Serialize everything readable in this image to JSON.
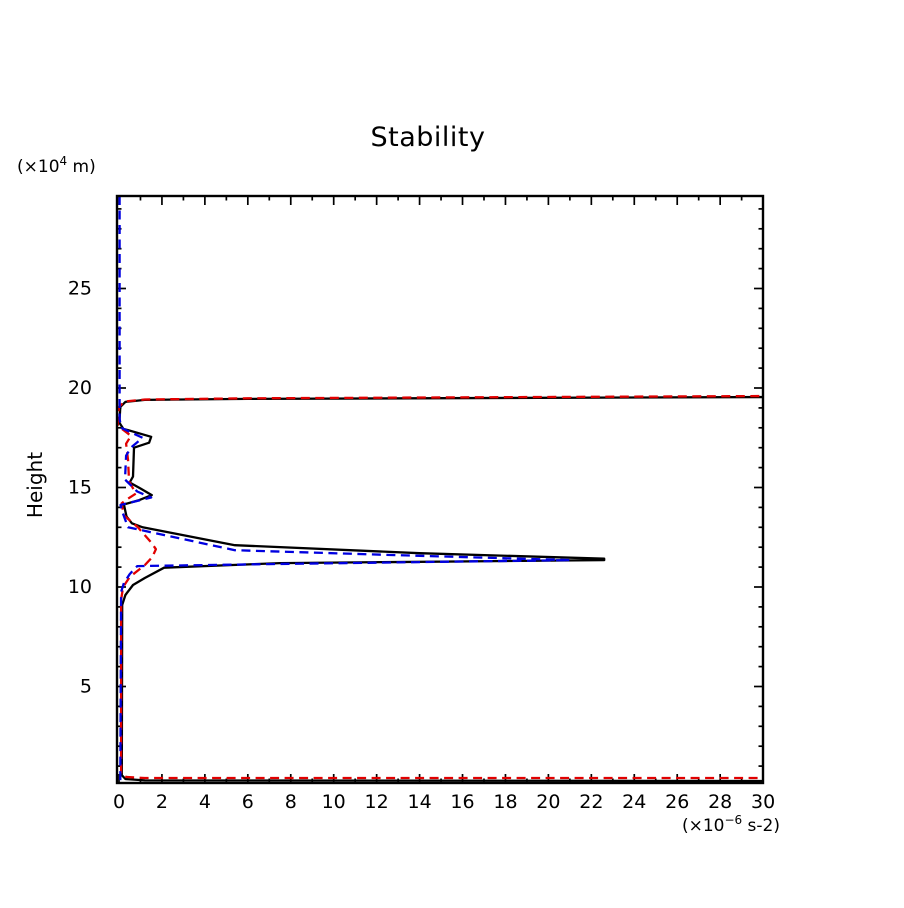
{
  "page": {
    "background_color": "#ffffff",
    "frame_color": "#000000"
  },
  "chart_data": {
    "type": "line",
    "title": "Stability",
    "ylabel": "Height",
    "y_axis_unit": {
      "prefix": "(×10",
      "sup": "4",
      "suffix": " m)"
    },
    "x_axis_unit": {
      "prefix": "(×10",
      "sup": "−6",
      "suffix": " s-2)"
    },
    "xlim": [
      0,
      30
    ],
    "ylim": [
      0,
      29.65
    ],
    "grid": false,
    "legend": null,
    "x_ticks": [
      {
        "v": 0,
        "label": "0"
      },
      {
        "v": 2,
        "label": "2"
      },
      {
        "v": 4,
        "label": "4"
      },
      {
        "v": 6,
        "label": "6"
      },
      {
        "v": 8,
        "label": "8"
      },
      {
        "v": 10,
        "label": "10"
      },
      {
        "v": 12,
        "label": "12"
      },
      {
        "v": 14,
        "label": "14"
      },
      {
        "v": 16,
        "label": "16"
      },
      {
        "v": 18,
        "label": "18"
      },
      {
        "v": 20,
        "label": "20"
      },
      {
        "v": 22,
        "label": "22"
      },
      {
        "v": 24,
        "label": "24"
      },
      {
        "v": 26,
        "label": "26"
      },
      {
        "v": 28,
        "label": "28"
      },
      {
        "v": 30,
        "label": "30"
      }
    ],
    "x_minor_step": 1,
    "y_ticks": [
      {
        "v": 5,
        "label": "5"
      },
      {
        "v": 10,
        "label": "10"
      },
      {
        "v": 15,
        "label": "15"
      },
      {
        "v": 20,
        "label": "20"
      },
      {
        "v": 25,
        "label": "25"
      }
    ],
    "y_minor_step": 1,
    "series": [
      {
        "name": "profile-solid-black",
        "style": "solid",
        "color": "#000000",
        "points": [
          [
            30.5,
            19.55
          ],
          [
            6,
            19.45
          ],
          [
            1.2,
            19.4
          ],
          [
            0.3,
            19.3
          ],
          [
            0.06,
            19.05
          ],
          [
            0.02,
            18.25
          ],
          [
            0.2,
            17.95
          ],
          [
            1.5,
            17.55
          ],
          [
            1.4,
            17.25
          ],
          [
            0.7,
            17.0
          ],
          [
            0.65,
            15.55
          ],
          [
            0.5,
            15.25
          ],
          [
            1.0,
            14.95
          ],
          [
            1.53,
            14.62
          ],
          [
            0.9,
            14.35
          ],
          [
            0.23,
            14.15
          ],
          [
            0.3,
            13.8
          ],
          [
            0.35,
            13.55
          ],
          [
            0.6,
            13.2
          ],
          [
            1.1,
            13.0
          ],
          [
            5.4,
            12.1
          ],
          [
            14,
            11.7
          ],
          [
            22.6,
            11.42
          ],
          [
            22.6,
            11.35
          ],
          [
            7.5,
            11.2
          ],
          [
            2.1,
            10.97
          ],
          [
            1.2,
            10.45
          ],
          [
            0.65,
            10.1
          ],
          [
            0.3,
            9.6
          ],
          [
            0.15,
            9.1
          ],
          [
            0.13,
            0.55
          ],
          [
            0.3,
            0.35
          ],
          [
            1.2,
            0.28
          ],
          [
            30.5,
            0.25
          ]
        ]
      },
      {
        "name": "profile-dashed-red",
        "style": "dashed",
        "color": "#e10000",
        "points": [
          [
            30.5,
            19.6
          ],
          [
            6,
            19.48
          ],
          [
            1.2,
            19.42
          ],
          [
            0.25,
            19.32
          ],
          [
            0.0,
            19.05
          ],
          [
            -0.05,
            18.6
          ],
          [
            -0.05,
            18.1
          ],
          [
            0.56,
            17.6
          ],
          [
            0.33,
            17.2
          ],
          [
            0.42,
            16.4
          ],
          [
            0.47,
            15.3
          ],
          [
            0.79,
            14.7
          ],
          [
            0.3,
            14.35
          ],
          [
            0.12,
            14.2
          ],
          [
            0.23,
            13.6
          ],
          [
            0.88,
            13.0
          ],
          [
            1.53,
            12.2
          ],
          [
            1.72,
            11.9
          ],
          [
            1.55,
            11.5
          ],
          [
            1.2,
            11.1
          ],
          [
            0.5,
            10.5
          ],
          [
            0.19,
            10.0
          ],
          [
            0.1,
            9.35
          ],
          [
            0.1,
            0.6
          ],
          [
            0.35,
            0.45
          ],
          [
            1.2,
            0.4
          ],
          [
            30.5,
            0.4
          ]
        ]
      },
      {
        "name": "profile-dashed-blue",
        "style": "dashed",
        "color": "#0000e0",
        "points": [
          [
            0.03,
            29.65
          ],
          [
            0.03,
            18.45
          ],
          [
            0.1,
            18.0
          ],
          [
            1.1,
            17.5
          ],
          [
            0.55,
            17.0
          ],
          [
            0.33,
            16.6
          ],
          [
            0.28,
            15.4
          ],
          [
            0.85,
            14.8
          ],
          [
            1.5,
            14.5
          ],
          [
            0.07,
            14.12
          ],
          [
            0.15,
            13.8
          ],
          [
            0.42,
            13.0
          ],
          [
            5.4,
            11.85
          ],
          [
            13,
            11.6
          ],
          [
            21,
            11.35
          ],
          [
            7,
            11.15
          ],
          [
            0.85,
            11.05
          ],
          [
            0.5,
            10.65
          ],
          [
            0.23,
            10.2
          ],
          [
            0.1,
            9.75
          ],
          [
            0.06,
            0.15
          ]
        ]
      }
    ]
  }
}
